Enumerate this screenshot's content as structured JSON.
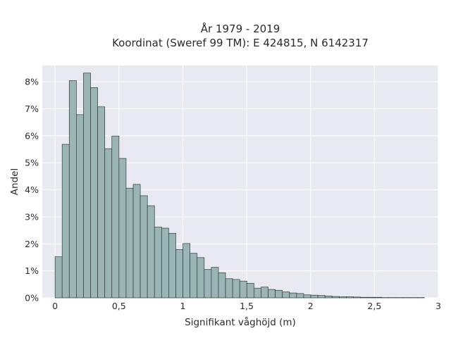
{
  "chart_data": {
    "type": "bar",
    "title": "År 1979 - 2019",
    "subtitle": "Koordinat (Sweref 99 TM): E 424815, N 6142317",
    "xlabel": "Signifikant våghöjd (m)",
    "ylabel": "Andel",
    "xlim": [
      -0.1,
      3.0
    ],
    "ylim": [
      0,
      8.6
    ],
    "x_ticks": [
      0,
      0.5,
      1,
      1.5,
      2,
      2.5,
      3
    ],
    "x_tick_labels": [
      "0",
      "0,5",
      "1",
      "1,5",
      "2",
      "2,5",
      "3"
    ],
    "y_ticks": [
      0,
      1,
      2,
      3,
      4,
      5,
      6,
      7,
      8
    ],
    "y_tick_labels": [
      "0%",
      "1%",
      "2%",
      "3%",
      "4%",
      "5%",
      "6%",
      "7%",
      "8%"
    ],
    "y_unit": "%",
    "bin_width": 0.0556,
    "bin_start": 0.0,
    "values": [
      1.52,
      5.68,
      8.04,
      6.78,
      8.32,
      7.78,
      7.07,
      5.52,
      5.99,
      5.16,
      4.06,
      4.2,
      3.78,
      3.41,
      2.62,
      2.58,
      2.39,
      1.79,
      2.01,
      1.65,
      1.49,
      1.05,
      1.13,
      0.93,
      0.71,
      0.68,
      0.62,
      0.54,
      0.36,
      0.4,
      0.31,
      0.28,
      0.22,
      0.18,
      0.16,
      0.11,
      0.1,
      0.09,
      0.07,
      0.05,
      0.04,
      0.04,
      0.03,
      0.02,
      0.02,
      0.02,
      0.01,
      0.01,
      0.01,
      0.01,
      0.01,
      0.01
    ],
    "bar_color": "#9ab5b4",
    "bar_edge_color": "#2f3b3b",
    "background_color": "#e9e9f1",
    "grid": true,
    "grid_color": "#ffffff"
  }
}
